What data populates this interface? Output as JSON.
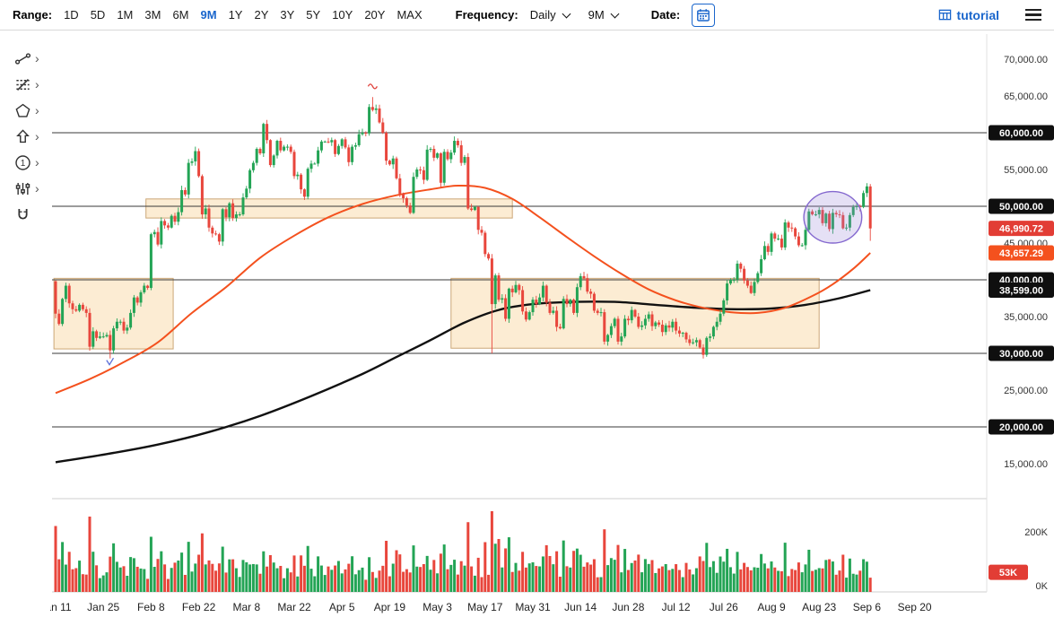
{
  "toolbar": {
    "range_label": "Range:",
    "ranges": [
      "1D",
      "5D",
      "1M",
      "3M",
      "6M",
      "9M",
      "1Y",
      "2Y",
      "3Y",
      "5Y",
      "10Y",
      "20Y",
      "MAX"
    ],
    "selected_range": "9M",
    "frequency_label": "Frequency:",
    "frequency_value": "Daily",
    "period_value": "9M",
    "date_label": "Date:",
    "brand": "tutorial"
  },
  "tool_rail": {
    "tools": [
      {
        "name": "trend-line-tool",
        "has_submenu": true
      },
      {
        "name": "fibonacci-tool",
        "has_submenu": true
      },
      {
        "name": "shape-tool",
        "has_submenu": true
      },
      {
        "name": "arrow-tool",
        "has_submenu": true
      },
      {
        "name": "number-annotation-tool",
        "has_submenu": true
      },
      {
        "name": "indicator-tool",
        "has_submenu": true
      },
      {
        "name": "magnet-tool",
        "has_submenu": false
      }
    ]
  },
  "chart_data": {
    "type": "candlestick",
    "frequency": "Daily",
    "range": "9M",
    "ylim": [
      10200,
      73400
    ],
    "xlim_days": [
      -1,
      270
    ],
    "colors": {
      "up": "#23a455",
      "down": "#e8463c"
    },
    "x_axis": {
      "ticks": [
        {
          "day": 0,
          "label": "Jan 11"
        },
        {
          "day": 14,
          "label": "Jan 25"
        },
        {
          "day": 28,
          "label": "Feb 8"
        },
        {
          "day": 42,
          "label": "Feb 22"
        },
        {
          "day": 56,
          "label": "Mar 8"
        },
        {
          "day": 70,
          "label": "Mar 22"
        },
        {
          "day": 84,
          "label": "Apr 5"
        },
        {
          "day": 98,
          "label": "Apr 19"
        },
        {
          "day": 112,
          "label": "May 3"
        },
        {
          "day": 126,
          "label": "May 17"
        },
        {
          "day": 140,
          "label": "May 31"
        },
        {
          "day": 154,
          "label": "Jun 14"
        },
        {
          "day": 168,
          "label": "Jun 28"
        },
        {
          "day": 182,
          "label": "Jul 12"
        },
        {
          "day": 196,
          "label": "Jul 26"
        },
        {
          "day": 210,
          "label": "Aug 9"
        },
        {
          "day": 224,
          "label": "Aug 23"
        },
        {
          "day": 238,
          "label": "Sep 6"
        },
        {
          "day": 252,
          "label": "Sep 20"
        }
      ]
    },
    "y_axis": {
      "ticks": [
        {
          "value": 70000,
          "label": "70,000.00"
        },
        {
          "value": 65000,
          "label": "65,000.00"
        },
        {
          "value": 60000,
          "label": "60,000.00"
        },
        {
          "value": 55000,
          "label": "55,000.00"
        },
        {
          "value": 50000,
          "label": "50,000.00"
        },
        {
          "value": 45000,
          "label": "45,000.00"
        },
        {
          "value": 40000,
          "label": "40,000.00"
        },
        {
          "value": 35000,
          "label": "35,000.00"
        },
        {
          "value": 30000,
          "label": "30,000.00"
        },
        {
          "value": 25000,
          "label": "25,000.00"
        },
        {
          "value": 20000,
          "label": "20,000.00"
        },
        {
          "value": 15000,
          "label": "15,000.00"
        }
      ]
    },
    "volume_axis": {
      "ticks": [
        {
          "value": 200,
          "label": "200K"
        },
        {
          "value": 0,
          "label": "0K"
        }
      ]
    },
    "horizontal_lines": [
      {
        "price": 60000
      },
      {
        "price": 50000
      },
      {
        "price": 40000
      },
      {
        "price": 30000
      },
      {
        "price": 20000
      }
    ],
    "right_axis_badges": [
      {
        "label": "60,000.00",
        "price": 60000,
        "bg": "#0f0f0f",
        "name": "price-level-badge-60000"
      },
      {
        "label": "50,000.00",
        "price": 50000,
        "bg": "#0f0f0f",
        "name": "price-level-badge-50000"
      },
      {
        "label": "46,990.72",
        "price": 46990.72,
        "bg": "#e23d35",
        "name": "last-price-badge"
      },
      {
        "label": "43,657.29",
        "price": 43657.29,
        "bg": "#f4511e",
        "name": "ma-fast-price-badge"
      },
      {
        "label": "40,000.00",
        "price": 40000,
        "bg": "#0f0f0f",
        "name": "price-level-badge-40000"
      },
      {
        "label": "38,599.00",
        "price": 38599,
        "bg": "#0f0f0f",
        "name": "ma-slow-price-badge"
      },
      {
        "label": "30,000.00",
        "price": 30000,
        "bg": "#0f0f0f",
        "name": "price-level-badge-30000"
      },
      {
        "label": "20,000.00",
        "price": 20000,
        "bg": "#0f0f0f",
        "name": "price-level-badge-20000"
      }
    ],
    "volume_badge": {
      "label": "53K",
      "value": 53,
      "bg": "#e23d35"
    },
    "last_price": 46990.72,
    "ma_fast": {
      "color": "#f4511e",
      "value_now": 43657.29,
      "points": [
        [
          0,
          24600
        ],
        [
          10,
          26500
        ],
        [
          20,
          28800
        ],
        [
          30,
          31500
        ],
        [
          40,
          35500
        ],
        [
          50,
          39000
        ],
        [
          60,
          43000
        ],
        [
          70,
          46000
        ],
        [
          80,
          48500
        ],
        [
          90,
          50300
        ],
        [
          100,
          51500
        ],
        [
          110,
          52300
        ],
        [
          118,
          52800
        ],
        [
          126,
          52500
        ],
        [
          134,
          51000
        ],
        [
          142,
          48500
        ],
        [
          150,
          45800
        ],
        [
          158,
          43200
        ],
        [
          166,
          40800
        ],
        [
          174,
          38700
        ],
        [
          182,
          37200
        ],
        [
          190,
          36200
        ],
        [
          198,
          35600
        ],
        [
          206,
          35500
        ],
        [
          214,
          36200
        ],
        [
          222,
          37800
        ],
        [
          228,
          39400
        ],
        [
          234,
          41500
        ],
        [
          239,
          43657
        ]
      ]
    },
    "ma_slow": {
      "color": "#111111",
      "value_now": 38599,
      "points": [
        [
          0,
          15200
        ],
        [
          15,
          16300
        ],
        [
          30,
          17600
        ],
        [
          45,
          19300
        ],
        [
          60,
          21500
        ],
        [
          75,
          24200
        ],
        [
          90,
          27200
        ],
        [
          100,
          29500
        ],
        [
          110,
          31800
        ],
        [
          120,
          34200
        ],
        [
          130,
          35900
        ],
        [
          140,
          36700
        ],
        [
          152,
          37000
        ],
        [
          164,
          37000
        ],
        [
          176,
          36600
        ],
        [
          188,
          36200
        ],
        [
          200,
          36000
        ],
        [
          210,
          36100
        ],
        [
          220,
          36600
        ],
        [
          230,
          37500
        ],
        [
          239,
          38599
        ]
      ]
    },
    "zone_style": {
      "fill": "rgba(243,186,98,0.28)",
      "stroke": "rgba(170,115,45,0.6)"
    },
    "zones": [
      {
        "name": "supply-zone-upper",
        "start_day": 26.5,
        "end_day": 134,
        "price_top": 51000,
        "price_bottom": 48400
      },
      {
        "name": "demand-zone-left",
        "start_day": -0.5,
        "end_day": 34.5,
        "price_top": 40200,
        "price_bottom": 30600
      },
      {
        "name": "demand-zone-mid",
        "start_day": 116,
        "end_day": 224,
        "price_top": 40200,
        "price_bottom": 30700
      }
    ],
    "ellipse": {
      "center_day": 228,
      "center_price": 48500,
      "rx_days": 8.5,
      "ry_price": 3500,
      "fill": "rgba(151,130,216,0.25)",
      "stroke": "#8468cf"
    },
    "markers": [
      {
        "day": 93,
        "price": 66300,
        "shape": "wave",
        "color": "#e0433c"
      },
      {
        "day": 16,
        "price": 28700,
        "shape": "check",
        "color": "#5b6fd8"
      }
    ],
    "open_first": 39800,
    "closes": [
      35400,
      34000,
      37400,
      39200,
      36800,
      36000,
      35800,
      36600,
      36000,
      35500,
      30900,
      33000,
      32100,
      32300,
      32300,
      32500,
      30400,
      33400,
      34300,
      34300,
      33100,
      33500,
      35500,
      37600,
      36900,
      38300,
      39200,
      38900,
      46200,
      46500,
      44800,
      48000,
      47400,
      47100,
      48700,
      47900,
      49200,
      52200,
      51600,
      55900,
      56100,
      57500,
      54100,
      48900,
      49700,
      47100,
      46300,
      46200,
      45200,
      49600,
      48500,
      50400,
      48400,
      48900,
      48900,
      51200,
      52400,
      54900,
      55900,
      57800,
      57200,
      61200,
      59000,
      55600,
      56900,
      58900,
      57600,
      58100,
      58100,
      57400,
      54100,
      54300,
      52300,
      51300,
      55100,
      55800,
      55800,
      57600,
      58800,
      58800,
      58700,
      59000,
      57100,
      58200,
      59100,
      58000,
      56000,
      58100,
      58300,
      59800,
      60000,
      59900,
      63500,
      63100,
      63300,
      61400,
      60000,
      56200,
      55700,
      56500,
      53800,
      51700,
      51100,
      50100,
      49100,
      54000,
      55000,
      54900,
      53600,
      57700,
      57800,
      56600,
      57200,
      53200,
      57400,
      56400,
      57300,
      58900,
      58300,
      55900,
      56700,
      49700,
      49500,
      49900,
      46800,
      46400,
      43500,
      42900,
      36700,
      40600,
      37300,
      37500,
      34700,
      38800,
      38300,
      39300,
      38600,
      35700,
      34600,
      35600,
      37300,
      36700,
      37600,
      39200,
      36900,
      35500,
      35800,
      33600,
      33400,
      37400,
      36700,
      37300,
      35500,
      39000,
      40500,
      40200,
      38400,
      38100,
      35800,
      35500,
      35600,
      31600,
      32500,
      33700,
      34700,
      31600,
      32300,
      34700,
      34500,
      35900,
      35000,
      33600,
      33800,
      34700,
      35300,
      33700,
      34200,
      33900,
      32900,
      33800,
      33500,
      34300,
      33100,
      32700,
      32800,
      31900,
      31400,
      31500,
      31800,
      30800,
      29800,
      32100,
      32300,
      33600,
      34300,
      35400,
      37200,
      39500,
      40000,
      40000,
      42200,
      41500,
      39900,
      39200,
      38200,
      39700,
      40900,
      42800,
      44600,
      43800,
      46300,
      45600,
      45600,
      44400,
      47800,
      47100,
      47000,
      45900,
      44700,
      44700,
      46800,
      49300,
      48900,
      48900,
      49500,
      47700,
      49000,
      46900,
      49100,
      48900,
      48800,
      47000,
      47100,
      48800,
      49900,
      50000,
      49900,
      51800,
      52700,
      46990.72
    ],
    "wick_overrides": {
      "16": {
        "low": 29300
      },
      "93": {
        "high": 64850
      },
      "128": {
        "low": 30000
      },
      "190": {
        "low": 29300
      },
      "239": {
        "low": 45300
      }
    },
    "volume_model": {
      "base": 38,
      "impulse_k": 1300,
      "noise_amp": 55,
      "cap": 280,
      "unit": "K"
    },
    "volume_overrides": {
      "0": 245,
      "28": 205,
      "97": 190,
      "126": 185,
      "128": 300,
      "190": 115,
      "239": 53
    }
  }
}
